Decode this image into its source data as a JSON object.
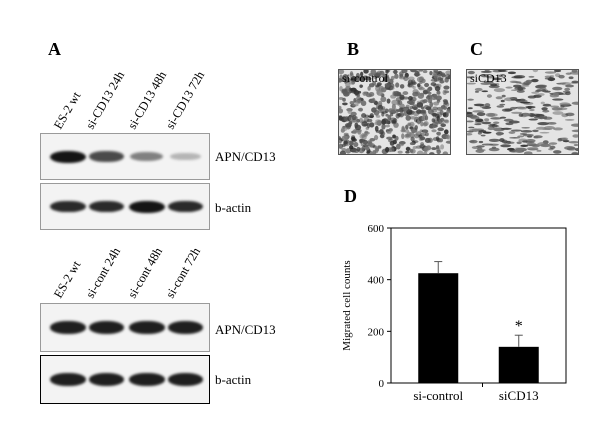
{
  "panel_letters": {
    "a": "A",
    "b": "B",
    "c": "C",
    "d": "D"
  },
  "blot_top": {
    "lanes": [
      "ES-2 wt",
      "si-CD13 24h",
      "si-CD13 48h",
      "si-CD13 72h"
    ],
    "row1_label": "APN/CD13",
    "row2_label": "b-actin",
    "row1_intensity": [
      1.0,
      0.75,
      0.5,
      0.25
    ],
    "row2_intensity": [
      0.9,
      0.9,
      1.0,
      0.9
    ]
  },
  "blot_bottom": {
    "lanes": [
      "ES-2 wt",
      "si-cont 24h",
      "si-cont 48h",
      "si-cont 72h"
    ],
    "row1_label": "APN/CD13",
    "row2_label": "b-actin",
    "row1_intensity": [
      0.95,
      0.95,
      0.95,
      0.95
    ],
    "row2_intensity": [
      0.95,
      0.95,
      0.95,
      0.95
    ]
  },
  "micrographs": {
    "b_label": "si-control",
    "c_label": "siCD13"
  },
  "chart_data": {
    "type": "bar",
    "categories": [
      "si-control",
      "siCD13"
    ],
    "values": [
      425,
      140
    ],
    "errors": [
      45,
      45
    ],
    "ylabel": "Migrated cell counts",
    "ylim": [
      0,
      600
    ],
    "yticks": [
      "0",
      "200",
      "400",
      "600"
    ],
    "annotation": "*",
    "bar_color": "#000000"
  }
}
